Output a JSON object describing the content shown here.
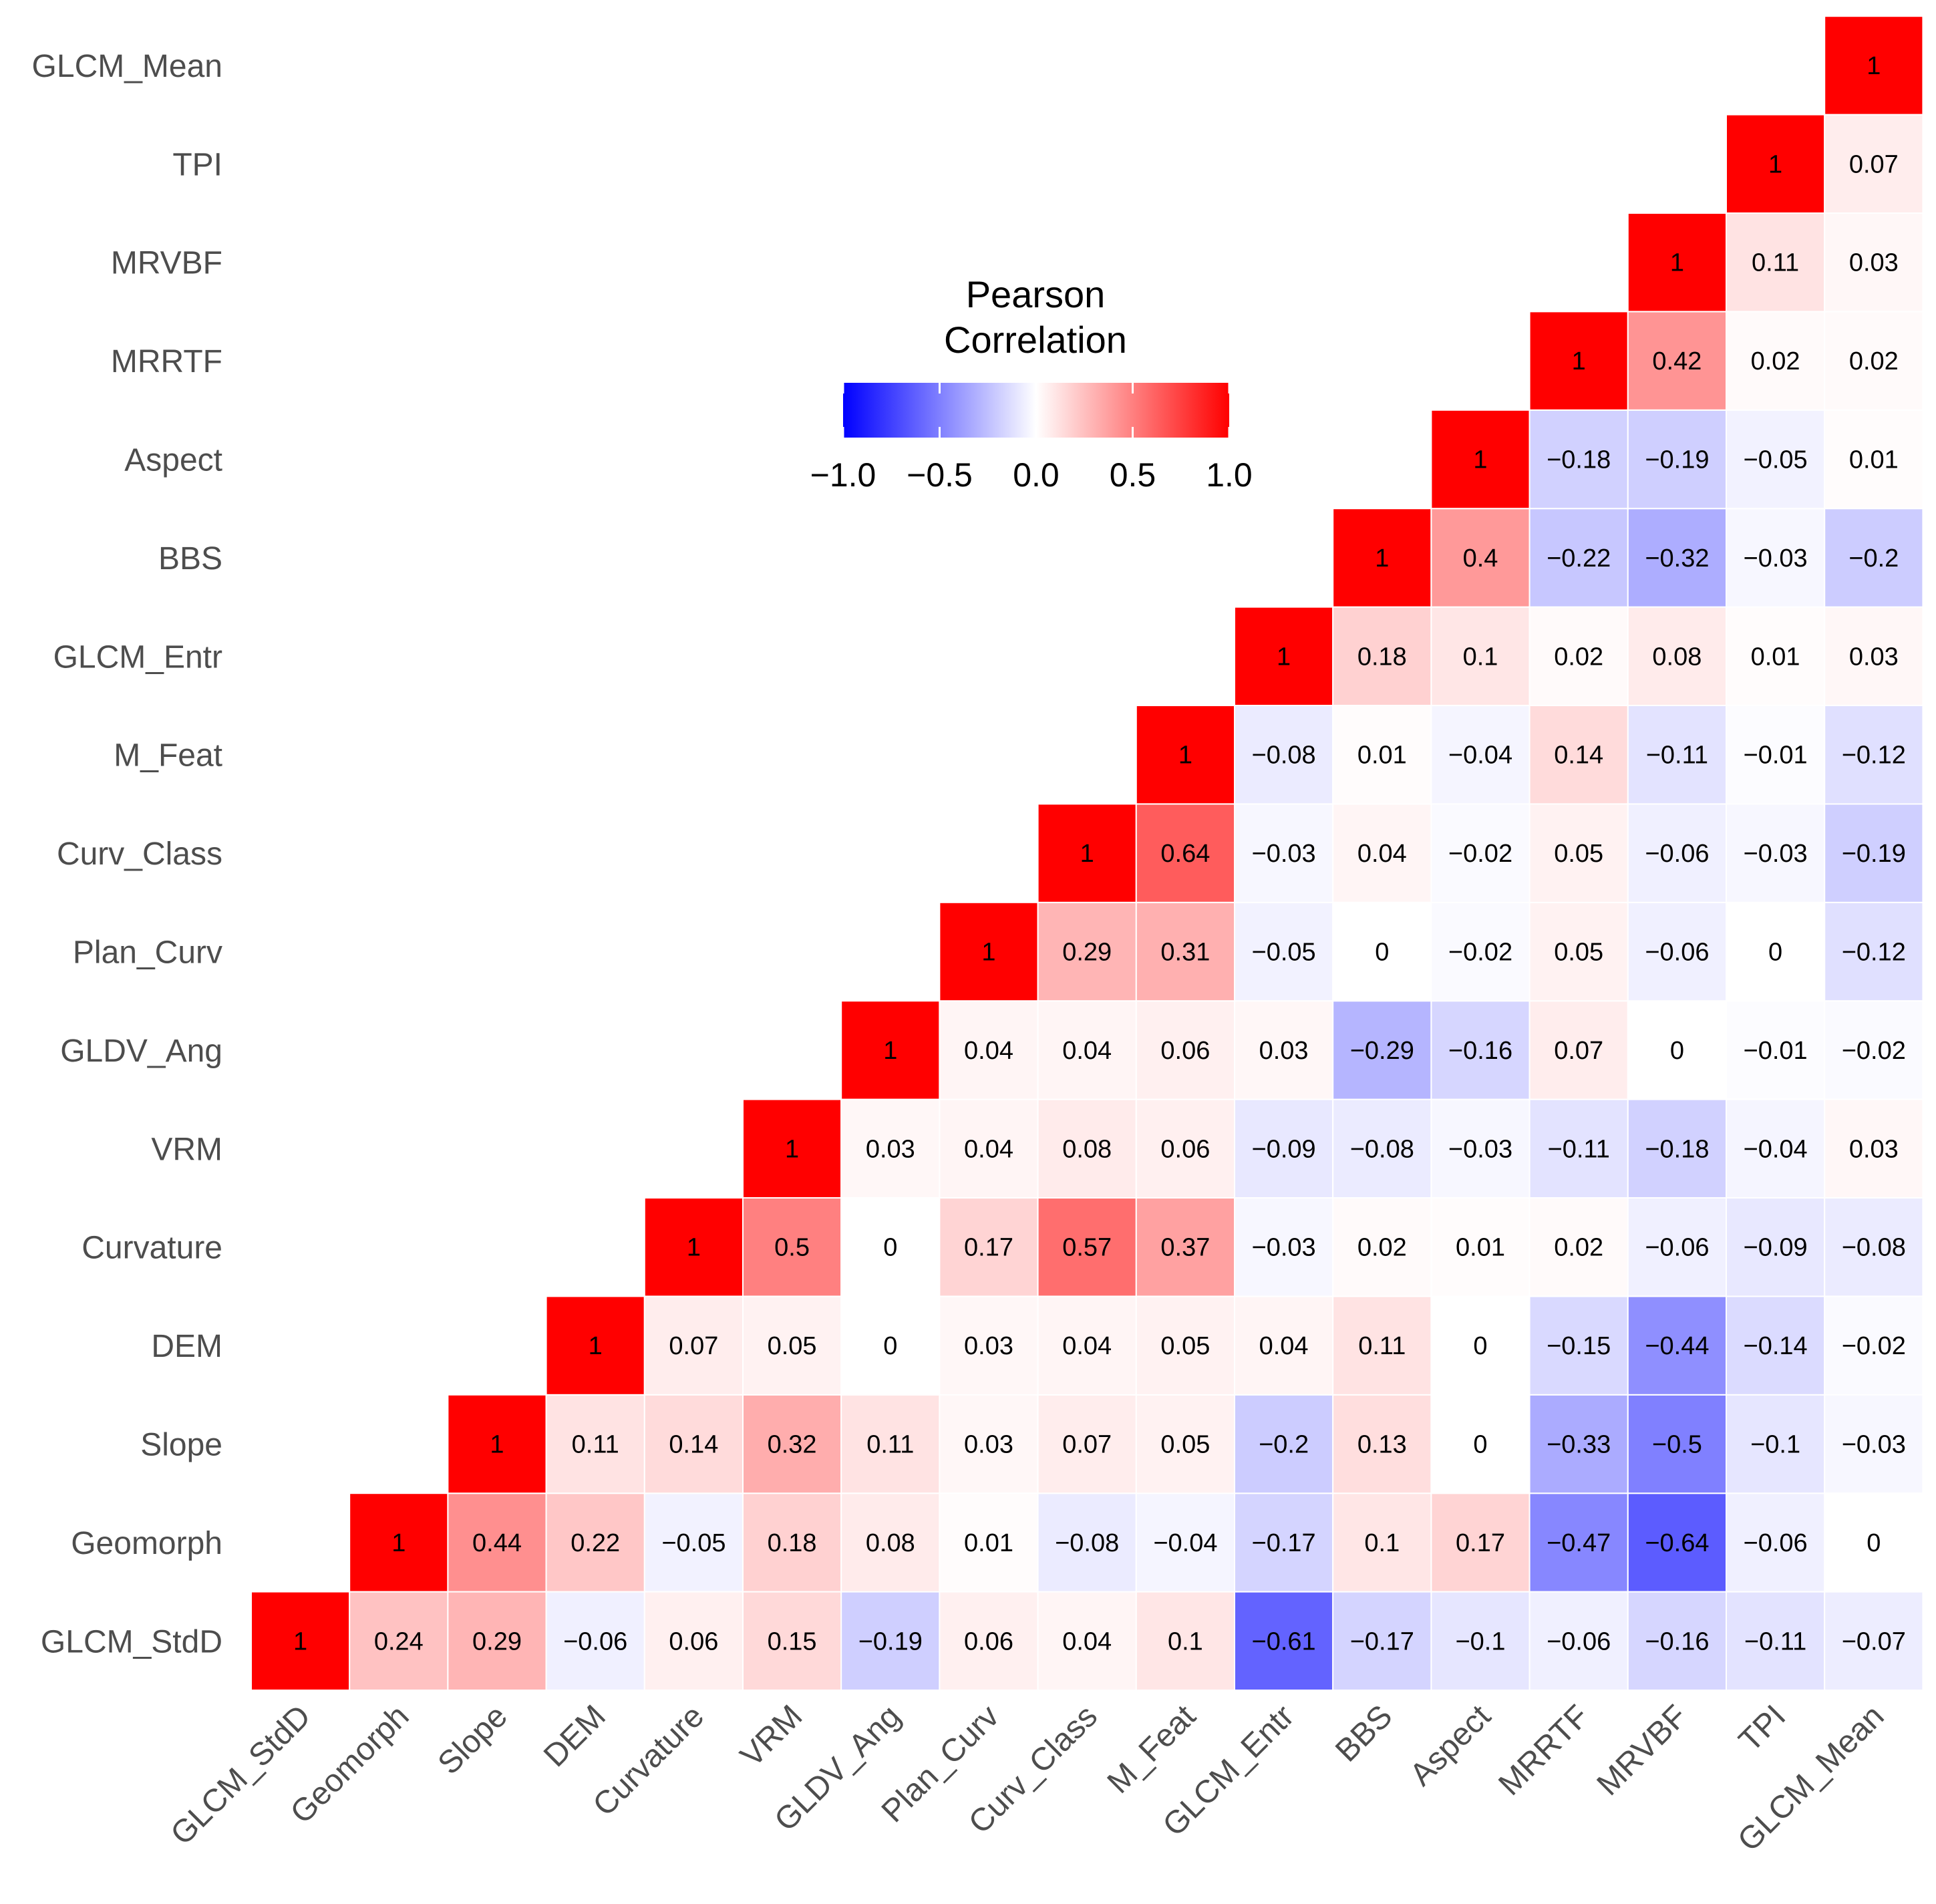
{
  "colors": {
    "low": "#0000FF",
    "mid": "#FFFFFF",
    "high": "#FF0000"
  },
  "chart_data": {
    "type": "heatmap",
    "variables": [
      "GLCM_StdD",
      "Geomorph",
      "Slope",
      "DEM",
      "Curvature",
      "VRM",
      "GLDV_Ang",
      "Plan_Curv",
      "Curv_Class",
      "M_Feat",
      "GLCM_Entr",
      "BBS",
      "Aspect",
      "MRRTF",
      "MRVBF",
      "TPI",
      "GLCM_Mean"
    ],
    "matrix": [
      [
        1,
        0.24,
        0.29,
        -0.06,
        0.06,
        0.15,
        -0.19,
        0.06,
        0.04,
        0.1,
        -0.61,
        -0.17,
        -0.1,
        -0.06,
        -0.16,
        -0.11,
        -0.07
      ],
      [
        null,
        1,
        0.44,
        0.22,
        -0.05,
        0.18,
        0.08,
        0.01,
        -0.08,
        -0.04,
        -0.17,
        0.1,
        0.17,
        -0.47,
        -0.64,
        -0.06,
        0
      ],
      [
        null,
        null,
        1,
        0.11,
        0.14,
        0.32,
        0.11,
        0.03,
        0.07,
        0.05,
        -0.2,
        0.13,
        0,
        -0.33,
        -0.5,
        -0.1,
        -0.03
      ],
      [
        null,
        null,
        null,
        1,
        0.07,
        0.05,
        0,
        0.03,
        0.04,
        0.05,
        0.04,
        0.11,
        0,
        -0.15,
        -0.44,
        -0.14,
        -0.02
      ],
      [
        null,
        null,
        null,
        null,
        1,
        0.5,
        0,
        0.17,
        0.57,
        0.37,
        -0.03,
        0.02,
        0.01,
        0.02,
        -0.06,
        -0.09,
        -0.08
      ],
      [
        null,
        null,
        null,
        null,
        null,
        1,
        0.03,
        0.04,
        0.08,
        0.06,
        -0.09,
        -0.08,
        -0.03,
        -0.11,
        -0.18,
        -0.04,
        0.03
      ],
      [
        null,
        null,
        null,
        null,
        null,
        null,
        1,
        0.04,
        0.04,
        0.06,
        0.03,
        -0.29,
        -0.16,
        0.07,
        0,
        -0.01,
        -0.02
      ],
      [
        null,
        null,
        null,
        null,
        null,
        null,
        null,
        1,
        0.29,
        0.31,
        -0.05,
        0,
        -0.02,
        0.05,
        -0.06,
        0,
        -0.12
      ],
      [
        null,
        null,
        null,
        null,
        null,
        null,
        null,
        null,
        1,
        0.64,
        -0.03,
        0.04,
        -0.02,
        0.05,
        -0.06,
        -0.03,
        -0.19
      ],
      [
        null,
        null,
        null,
        null,
        null,
        null,
        null,
        null,
        null,
        1,
        -0.08,
        0.01,
        -0.04,
        0.14,
        -0.11,
        -0.01,
        -0.12
      ],
      [
        null,
        null,
        null,
        null,
        null,
        null,
        null,
        null,
        null,
        null,
        1,
        0.18,
        0.1,
        0.02,
        0.08,
        0.01,
        0.03
      ],
      [
        null,
        null,
        null,
        null,
        null,
        null,
        null,
        null,
        null,
        null,
        null,
        1,
        0.4,
        -0.22,
        -0.32,
        -0.03,
        -0.2
      ],
      [
        null,
        null,
        null,
        null,
        null,
        null,
        null,
        null,
        null,
        null,
        null,
        null,
        1,
        -0.18,
        -0.19,
        -0.05,
        0.01
      ],
      [
        null,
        null,
        null,
        null,
        null,
        null,
        null,
        null,
        null,
        null,
        null,
        null,
        null,
        1,
        0.42,
        0.02,
        0.02
      ],
      [
        null,
        null,
        null,
        null,
        null,
        null,
        null,
        null,
        null,
        null,
        null,
        null,
        null,
        null,
        1,
        0.11,
        0.03
      ],
      [
        null,
        null,
        null,
        null,
        null,
        null,
        null,
        null,
        null,
        null,
        null,
        null,
        null,
        null,
        null,
        1,
        0.07
      ],
      [
        null,
        null,
        null,
        null,
        null,
        null,
        null,
        null,
        null,
        null,
        null,
        null,
        null,
        null,
        null,
        null,
        1
      ]
    ],
    "legend": {
      "title_line1": "Pearson",
      "title_line2": "Correlation",
      "ticks": [
        -1.0,
        -0.5,
        0.0,
        0.5,
        1.0
      ],
      "tick_labels": [
        "−1.0",
        "−0.5",
        "0.0",
        "0.5",
        "1.0"
      ],
      "limits": [
        -1,
        1
      ]
    }
  }
}
